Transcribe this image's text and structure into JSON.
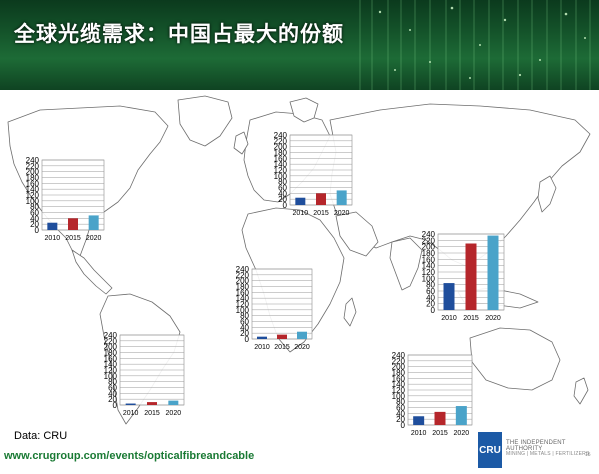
{
  "title": "全球光缆需求：中国占最大的份额",
  "source_note": "Data: CRU",
  "url": "www.crugroup.com/events/opticalfibreandcable",
  "logo": {
    "text": "CRU",
    "tagline_1": "THE INDEPENDENT AUTHORITY",
    "tagline_2": "MINING | METALS | FERTILIZERS",
    "page_number": "15"
  },
  "colors": {
    "2010": "#1f4e9c",
    "2015": "#b5262b",
    "2020": "#4aa3c9",
    "banner": "#14532a",
    "url": "#1a7a34"
  },
  "chart_data": [
    {
      "type": "bar",
      "region": "north-america",
      "categories": [
        "2010",
        "2015",
        "2020"
      ],
      "values": [
        25,
        40,
        50
      ],
      "ylim": [
        0,
        240
      ],
      "yticks": [
        0,
        20,
        40,
        60,
        80,
        100,
        120,
        140,
        160,
        180,
        200,
        220,
        240
      ]
    },
    {
      "type": "bar",
      "region": "europe",
      "categories": [
        "2010",
        "2015",
        "2020"
      ],
      "values": [
        25,
        40,
        50
      ],
      "ylim": [
        0,
        240
      ],
      "yticks": [
        0,
        20,
        40,
        60,
        80,
        100,
        120,
        140,
        160,
        180,
        200,
        220,
        240
      ]
    },
    {
      "type": "bar",
      "region": "china",
      "categories": [
        "2010",
        "2015",
        "2020"
      ],
      "values": [
        85,
        210,
        235
      ],
      "ylim": [
        0,
        240
      ],
      "yticks": [
        0,
        20,
        40,
        60,
        80,
        100,
        120,
        140,
        160,
        180,
        200,
        220,
        240
      ]
    },
    {
      "type": "bar",
      "region": "africa-middle-east",
      "categories": [
        "2010",
        "2015",
        "2020"
      ],
      "values": [
        8,
        15,
        25
      ],
      "ylim": [
        0,
        240
      ],
      "yticks": [
        0,
        20,
        40,
        60,
        80,
        100,
        120,
        140,
        160,
        180,
        200,
        220,
        240
      ]
    },
    {
      "type": "bar",
      "region": "south-america",
      "categories": [
        "2010",
        "2015",
        "2020"
      ],
      "values": [
        5,
        10,
        15
      ],
      "ylim": [
        0,
        240
      ],
      "yticks": [
        0,
        20,
        40,
        60,
        80,
        100,
        120,
        140,
        160,
        180,
        200,
        220,
        240
      ]
    },
    {
      "type": "bar",
      "region": "asia-pacific",
      "categories": [
        "2010",
        "2015",
        "2020"
      ],
      "values": [
        30,
        45,
        65
      ],
      "ylim": [
        0,
        240
      ],
      "yticks": [
        0,
        20,
        40,
        60,
        80,
        100,
        120,
        140,
        160,
        180,
        200,
        220,
        240
      ]
    }
  ]
}
